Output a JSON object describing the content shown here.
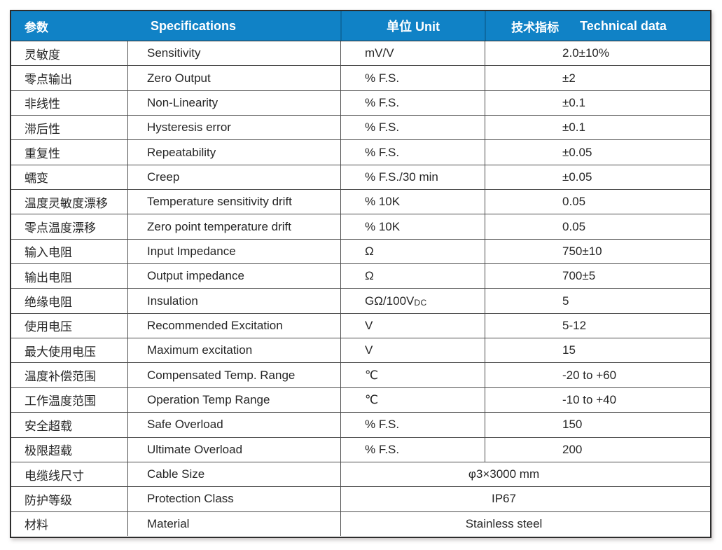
{
  "table": {
    "header": {
      "col_param": "参数",
      "col_spec": "Specifications",
      "col_unit": "单位 Unit",
      "col_tech_cn": "技术指标",
      "col_tech_en": "Technical data"
    },
    "rows": [
      {
        "param": "灵敏度",
        "spec": "Sensitivity",
        "unit": "mV/V",
        "value": "2.0±10%"
      },
      {
        "param": "零点输出",
        "spec": "Zero Output",
        "unit": "% F.S.",
        "value": "±2"
      },
      {
        "param": "非线性",
        "spec": "Non-Linearity",
        "unit": "% F.S.",
        "value": "±0.1"
      },
      {
        "param": "滞后性",
        "spec": "Hysteresis error",
        "unit": "% F.S.",
        "value": "±0.1"
      },
      {
        "param": "重复性",
        "spec": "Repeatability",
        "unit": "% F.S.",
        "value": "±0.05"
      },
      {
        "param": "蠕变",
        "spec": "Creep",
        "unit": "% F.S./30 min",
        "value": "±0.05"
      },
      {
        "param": "温度灵敏度漂移",
        "spec": "Temperature sensitivity drift",
        "unit": "% 10K",
        "value": "0.05"
      },
      {
        "param": "零点温度漂移",
        "spec": "Zero point temperature drift",
        "unit": "% 10K",
        "value": "0.05"
      },
      {
        "param": "输入电阻",
        "spec": "Input Impedance",
        "unit": "Ω",
        "value": "750±10"
      },
      {
        "param": "输出电阻",
        "spec": "Output impedance",
        "unit": "Ω",
        "value": "700±5"
      },
      {
        "param": "绝缘电阻",
        "spec": "Insulation",
        "unit": "GΩ/100V",
        "unit_sub": "DC",
        "value": "5"
      },
      {
        "param": "使用电压",
        "spec": "Recommended Excitation",
        "unit": "V",
        "value": "5-12"
      },
      {
        "param": "最大使用电压",
        "spec": "Maximum excitation",
        "unit": "V",
        "value": "15"
      },
      {
        "param": "温度补偿范围",
        "spec": "Compensated Temp. Range",
        "unit": "℃",
        "value": "-20 to +60"
      },
      {
        "param": "工作温度范围",
        "spec": "Operation Temp Range",
        "unit": "℃",
        "value": "-10 to +40"
      },
      {
        "param": "安全超载",
        "spec": "Safe Overload",
        "unit": "% F.S.",
        "value": "150"
      },
      {
        "param": "极限超载",
        "spec": "Ultimate Overload",
        "unit": "% F.S.",
        "value": "200"
      },
      {
        "param": "电缆线尺寸",
        "spec": "Cable Size",
        "merged_value": "φ3×3000 mm"
      },
      {
        "param": "防护等级",
        "spec": "Protection Class",
        "merged_value": "IP67"
      },
      {
        "param": "材料",
        "spec": "Material",
        "merged_value": "Stainless steel"
      }
    ],
    "colors": {
      "header_bg": "#1082c6",
      "header_divider": "#0c6aa2",
      "header_text": "#ffffff",
      "body_text": "#262626",
      "grid_line": "#4d4d4d",
      "outer_border": "#2d2d2d"
    }
  }
}
